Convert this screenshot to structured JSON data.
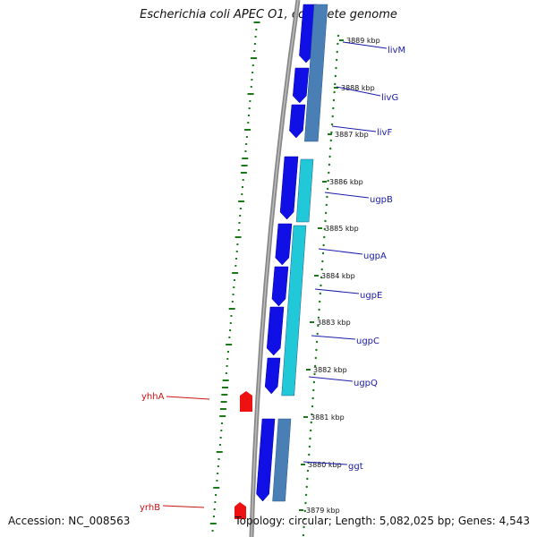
{
  "title": "Escherichia coli APEC O1, complete genome",
  "footer": {
    "accession": "Accession: NC_008563",
    "summary": "Topology: circular; Length: 5,082,025 bp; Genes: 4,543"
  },
  "scale_labels": [
    "3889 kbp",
    "3888 kbp",
    "3887 kbp",
    "3886 kbp",
    "3885 kbp",
    "3884 kbp",
    "3883 kbp",
    "3882 kbp",
    "3881 kbp",
    "3880 kbp",
    "3879 kbp"
  ],
  "genes_right": [
    "livM",
    "livG",
    "livF",
    "ugpB",
    "ugpA",
    "ugpE",
    "ugpC",
    "ugpQ",
    "ggt"
  ],
  "genes_left": [
    "yhhA",
    "yrhB"
  ],
  "colors": {
    "backbone": "#888888",
    "cds_blue": "#1010e6",
    "track_steel": "#4a7fb5",
    "track_cyan": "#20c8d8",
    "gene_label_blue": "#1a1aa8",
    "gene_label_red": "#cc1111",
    "gc_dash": "#1a7a1a",
    "ticks": "#1a7a1a"
  }
}
